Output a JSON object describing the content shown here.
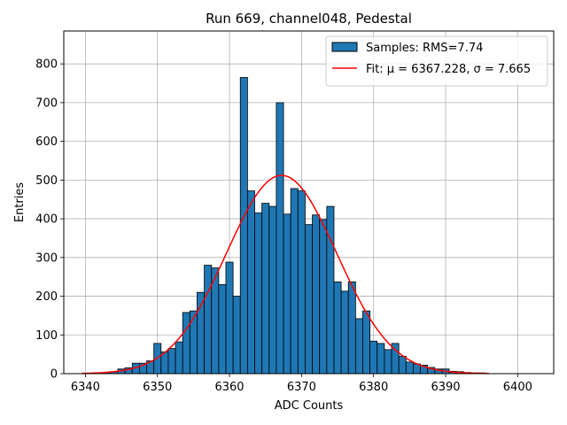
{
  "chart_data": {
    "type": "bar",
    "title": "Run 669, channel048, Pedestal",
    "xlabel": "ADC Counts",
    "ylabel": "Entries",
    "xlim": [
      6337,
      6405
    ],
    "ylim": [
      0,
      885
    ],
    "xticks": [
      6340,
      6350,
      6360,
      6370,
      6380,
      6390,
      6400
    ],
    "yticks": [
      0,
      100,
      200,
      300,
      400,
      500,
      600,
      700,
      800
    ],
    "grid": true,
    "legend_placement": "top-right",
    "colors": {
      "bar_fill": "#1f77b4",
      "bar_edge": "#000000",
      "fit_line": "#ff0000",
      "grid": "#b0b0b0"
    },
    "series": [
      {
        "name": "Samples: RMS=7.74",
        "kind": "histogram",
        "bin_edges_start": 6339.5,
        "bin_width": 1,
        "x": [
          6343,
          6344,
          6345,
          6346,
          6347,
          6348,
          6349,
          6350,
          6351,
          6352,
          6353,
          6354,
          6355,
          6356,
          6357,
          6358,
          6359,
          6360,
          6361,
          6362,
          6363,
          6364,
          6365,
          6366,
          6367,
          6368,
          6369,
          6370,
          6371,
          6372,
          6373,
          6374,
          6375,
          6376,
          6377,
          6378,
          6379,
          6380,
          6381,
          6382,
          6383,
          6384,
          6385,
          6386,
          6387,
          6388,
          6389,
          6390,
          6391,
          6392,
          6393,
          6394,
          6395
        ],
        "values": [
          3,
          5,
          12,
          15,
          27,
          27,
          33,
          78,
          56,
          65,
          82,
          158,
          162,
          210,
          280,
          273,
          230,
          288,
          200,
          765,
          472,
          415,
          440,
          432,
          700,
          412,
          478,
          472,
          385,
          410,
          398,
          432,
          237,
          213,
          237,
          142,
          162,
          84,
          78,
          62,
          78,
          45,
          30,
          25,
          22,
          16,
          12,
          12,
          6,
          5,
          3,
          2,
          2
        ]
      },
      {
        "name": "Fit: μ = 6367.228, σ = 7.665",
        "kind": "gaussian-fit",
        "mu": 6367.228,
        "sigma": 7.665,
        "amplitude": 512,
        "x_range": [
          6339.5,
          6396
        ]
      }
    ]
  }
}
